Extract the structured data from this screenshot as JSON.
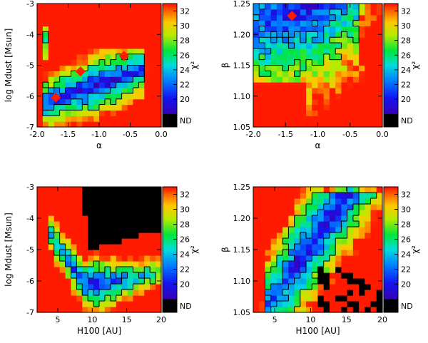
{
  "colors": {
    "low": "#3a00b0",
    "high": "#ff1a00",
    "nodata": "#000000",
    "contour": "#000000",
    "background": "#ffffff"
  },
  "colorbar": {
    "ticks": [
      "32",
      "30",
      "28",
      "26",
      "24",
      "22",
      "20"
    ],
    "nd_label": "ND",
    "label": "χ²",
    "range": [
      18,
      33
    ]
  },
  "chart_data": [
    {
      "type": "heatmap",
      "xlabel": "α",
      "ylabel": "log Mdust [Msun]",
      "xlim": [
        -2.0,
        0.0
      ],
      "ylim": [
        -7,
        -3
      ],
      "xticks": [
        "-2.0",
        "-1.5",
        "-1.0",
        "-0.5",
        "0.0"
      ],
      "yticks": [
        "-3",
        "-4",
        "-5",
        "-6",
        "-7"
      ],
      "colorbar_label": "χ²",
      "best_fit_regions": [
        {
          "x_center": -1.0,
          "y_center": -5.8,
          "min_chi2": 19
        },
        {
          "x_center": -1.7,
          "y_center": -6.1,
          "min_chi2": 22
        }
      ],
      "red_markers": [
        [
          -1.7,
          -6.05
        ],
        [
          -1.3,
          -5.2
        ],
        [
          -0.6,
          -4.7
        ]
      ]
    },
    {
      "type": "heatmap",
      "xlabel": "α",
      "ylabel": "β",
      "xlim": [
        -2.0,
        0.0
      ],
      "ylim": [
        1.05,
        1.25
      ],
      "xticks": [
        "-2.0",
        "-1.5",
        "-1.0",
        "-0.5",
        "0.0"
      ],
      "yticks": [
        "1.25",
        "1.20",
        "1.15",
        "1.10",
        "1.05"
      ],
      "colorbar_label": "χ²",
      "best_fit_regions": [
        {
          "x_center": -1.0,
          "y_center": 1.19,
          "min_chi2": 20
        }
      ],
      "red_markers": [
        [
          -1.4,
          1.23
        ]
      ]
    },
    {
      "type": "heatmap",
      "xlabel": "H100 [AU]",
      "ylabel": "log Mdust [Msun]",
      "xlim": [
        2,
        20
      ],
      "ylim": [
        -7,
        -3
      ],
      "xticks": [
        "5",
        "10",
        "15",
        "20"
      ],
      "yticks": [
        "-3",
        "-4",
        "-5",
        "-6",
        "-7"
      ],
      "colorbar_label": "χ²",
      "best_fit_regions": [
        {
          "x_center": 10,
          "y_center": -6.0,
          "min_chi2": 19
        }
      ],
      "no_data_region": "upper-right"
    },
    {
      "type": "heatmap",
      "xlabel": "H100 [AU]",
      "ylabel": "β",
      "xlim": [
        2,
        20
      ],
      "ylim": [
        1.05,
        1.25
      ],
      "xticks": [
        "5",
        "10",
        "15",
        "20"
      ],
      "yticks": [
        "1.25",
        "1.20",
        "1.15",
        "1.10",
        "1.05"
      ],
      "colorbar_label": "χ²",
      "best_fit_regions": [
        {
          "x_center": 11,
          "y_center": 1.21,
          "min_chi2": 21
        }
      ],
      "no_data_region": "lower-right"
    }
  ]
}
